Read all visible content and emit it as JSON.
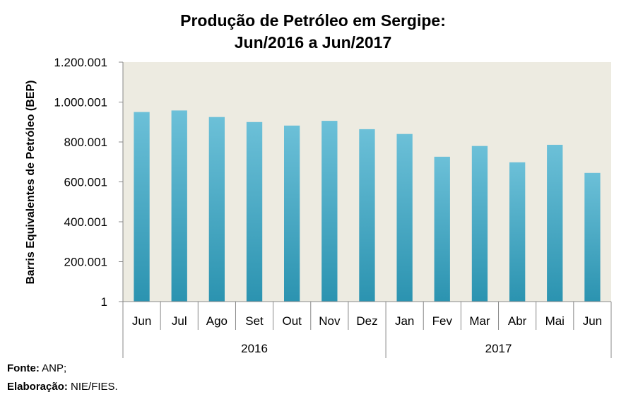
{
  "chart_data": {
    "type": "bar",
    "title_line1": "Produção de Petróleo em Sergipe:",
    "title_line2": "Jun/2016 a Jun/2017",
    "ylabel": "Barris Equivalentes de Petróleo (BEP)",
    "xlabel": "",
    "y_ticks": [
      "1",
      "200.001",
      "400.001",
      "600.001",
      "800.001",
      "1.000.001",
      "1.200.001"
    ],
    "y_tick_values": [
      1,
      200001,
      400001,
      600001,
      800001,
      1000001,
      1200001
    ],
    "ylim": [
      1,
      1200001
    ],
    "categories": [
      "Jun",
      "Jul",
      "Ago",
      "Set",
      "Out",
      "Nov",
      "Dez",
      "Jan",
      "Fev",
      "Mar",
      "Abr",
      "Mai",
      "Jun"
    ],
    "groups": [
      {
        "label": "2016",
        "count": 7
      },
      {
        "label": "2017",
        "count": 6
      }
    ],
    "series": [
      {
        "values": [
          950000,
          958000,
          925000,
          900000,
          882000,
          906000,
          864000,
          840000,
          726000,
          780000,
          698000,
          786000,
          645000
        ]
      }
    ],
    "grid": false,
    "legend": "none",
    "colors": {
      "plot_background": "#edebe1",
      "bar_top": "#6cc0d8",
      "bar_bottom": "#2b93b0",
      "axis": "#888888"
    }
  },
  "footer": {
    "source_label": "Fonte:",
    "source_value": " ANP;",
    "credit_label": "Elaboração:",
    "credit_value": " NIE/FIES."
  }
}
